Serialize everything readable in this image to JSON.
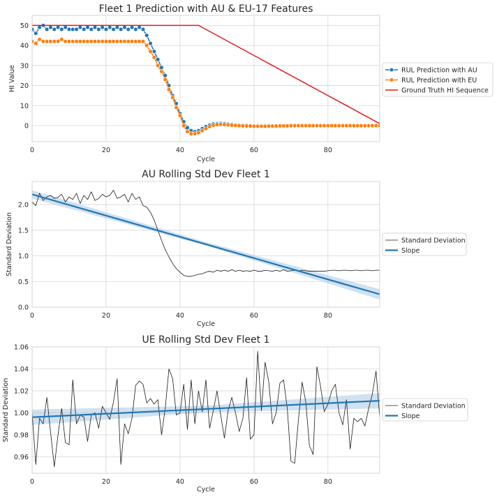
{
  "colors": {
    "au": "#1f77b4",
    "eu": "#ff7f0e",
    "truth": "#e41a1c",
    "std": "#1a1a1a",
    "slope": "#1f77b4",
    "band": "#a9c9e6"
  },
  "chart_data": [
    {
      "type": "line",
      "title": "Fleet 1 Prediction with AU & EU-17 Features",
      "xlabel": "Cycle",
      "ylabel": "HI Value",
      "xlim": [
        0,
        94
      ],
      "ylim": [
        -8,
        55
      ],
      "xticks": [
        0,
        20,
        40,
        60,
        80
      ],
      "yticks": [
        0,
        10,
        20,
        30,
        40,
        50
      ],
      "legend_position": "outside-right",
      "legend": [
        "RUL Prediction with AU",
        "RUL Prediction with EU",
        "Ground Truth HI Sequence"
      ],
      "series": [
        {
          "name": "RUL Prediction with AU",
          "x": [
            0,
            1,
            2,
            3,
            4,
            5,
            6,
            7,
            8,
            9,
            10,
            11,
            12,
            13,
            14,
            15,
            16,
            17,
            18,
            19,
            20,
            21,
            22,
            23,
            24,
            25,
            26,
            27,
            28,
            29,
            30,
            31,
            32,
            33,
            34,
            35,
            36,
            37,
            38,
            39,
            40,
            41,
            42,
            43,
            44,
            45,
            46,
            47,
            48,
            49,
            50,
            51,
            52,
            53,
            54,
            55,
            56,
            57,
            58,
            59,
            60,
            61,
            62,
            63,
            64,
            65,
            66,
            67,
            68,
            69,
            70,
            71,
            72,
            73,
            74,
            75,
            76,
            77,
            78,
            79,
            80,
            81,
            82,
            83,
            84,
            85,
            86,
            87,
            88,
            89,
            90,
            91,
            92,
            93,
            94
          ],
          "y": [
            48,
            46,
            49,
            50,
            48,
            49,
            48,
            49,
            48,
            49,
            48,
            48,
            48,
            49,
            48,
            49,
            48,
            49,
            48,
            49,
            48,
            49,
            48,
            49,
            48,
            49,
            48,
            49,
            48,
            49,
            48,
            45,
            41,
            37,
            33,
            29,
            25,
            20,
            15,
            11,
            6,
            2,
            -1,
            -2.5,
            -3,
            -2.5,
            -1.5,
            -0.5,
            0.3,
            0.8,
            1,
            1.1,
            1,
            0.8,
            0.6,
            0.4,
            0.3,
            0.2,
            0.1,
            0.1,
            0,
            0,
            0,
            0,
            0,
            0,
            0,
            0,
            0,
            0,
            0,
            0,
            0,
            0,
            0,
            0,
            0,
            0,
            0,
            0,
            0,
            0,
            0,
            0,
            0,
            0,
            0,
            0,
            0,
            0,
            0,
            0,
            0,
            0,
            0
          ]
        },
        {
          "name": "RUL Prediction with EU",
          "x": [
            0,
            1,
            2,
            3,
            4,
            5,
            6,
            7,
            8,
            9,
            10,
            11,
            12,
            13,
            14,
            15,
            16,
            17,
            18,
            19,
            20,
            21,
            22,
            23,
            24,
            25,
            26,
            27,
            28,
            29,
            30,
            31,
            32,
            33,
            34,
            35,
            36,
            37,
            38,
            39,
            40,
            41,
            42,
            43,
            44,
            45,
            46,
            47,
            48,
            49,
            50,
            51,
            52,
            53,
            54,
            55,
            56,
            57,
            58,
            59,
            60,
            61,
            62,
            63,
            64,
            65,
            66,
            67,
            68,
            69,
            70,
            71,
            72,
            73,
            74,
            75,
            76,
            77,
            78,
            79,
            80,
            81,
            82,
            83,
            84,
            85,
            86,
            87,
            88,
            89,
            90,
            91,
            92,
            93,
            94
          ],
          "y": [
            42,
            41,
            43,
            42,
            42,
            42,
            42,
            42,
            43,
            42,
            42,
            42,
            42,
            42,
            42,
            42,
            42,
            42,
            42,
            42,
            42,
            42,
            42,
            42,
            42,
            42,
            42,
            42,
            42,
            42,
            42,
            40,
            37,
            34,
            30,
            27,
            23,
            18,
            14,
            9,
            5,
            0,
            -3,
            -4,
            -4,
            -3.5,
            -2.5,
            -1.5,
            -0.5,
            0.2,
            0.5,
            0.6,
            0.5,
            0.4,
            0.2,
            0.1,
            0,
            -0.1,
            -0.2,
            -0.2,
            -0.3,
            -0.3,
            -0.3,
            -0.3,
            -0.2,
            -0.2,
            -0.2,
            -0.1,
            -0.1,
            -0.1,
            0,
            0,
            0,
            0,
            0,
            0,
            0,
            0,
            0,
            0,
            0,
            0,
            0,
            0,
            0,
            0,
            0,
            0,
            0,
            0,
            0,
            0,
            0,
            0,
            0
          ]
        },
        {
          "name": "Ground Truth HI Sequence",
          "x": [
            0,
            45,
            94
          ],
          "y": [
            50,
            50,
            1
          ]
        }
      ]
    },
    {
      "type": "line",
      "title": "AU Rolling Std Dev Fleet 1",
      "xlabel": "Cycle",
      "ylabel": "Standard Deviation",
      "xlim": [
        0,
        94
      ],
      "ylim": [
        0,
        2.45
      ],
      "xticks": [
        0,
        20,
        40,
        60,
        80
      ],
      "yticks": [
        0.0,
        0.5,
        1.0,
        1.5,
        2.0
      ],
      "legend_position": "outside-right",
      "legend": [
        "Standard Deviation",
        "Slope"
      ],
      "series": [
        {
          "name": "Standard Deviation",
          "x": [
            0,
            1,
            2,
            3,
            4,
            5,
            6,
            7,
            8,
            9,
            10,
            11,
            12,
            13,
            14,
            15,
            16,
            17,
            18,
            19,
            20,
            21,
            22,
            23,
            24,
            25,
            26,
            27,
            28,
            29,
            30,
            31,
            32,
            33,
            34,
            35,
            36,
            37,
            38,
            39,
            40,
            41,
            42,
            43,
            44,
            45,
            46,
            47,
            48,
            49,
            50,
            51,
            52,
            53,
            54,
            55,
            56,
            57,
            58,
            59,
            60,
            61,
            62,
            63,
            64,
            65,
            66,
            67,
            68,
            69,
            70,
            71,
            72,
            73,
            74,
            75,
            76,
            77,
            78,
            79,
            80,
            81,
            82,
            83,
            84,
            85,
            86,
            87,
            88,
            89,
            90,
            91,
            92,
            93,
            94
          ],
          "y": [
            2.05,
            1.98,
            2.22,
            2.08,
            2.15,
            2.18,
            2.12,
            2.14,
            2.2,
            2.05,
            2.15,
            2.1,
            2.22,
            2.02,
            2.18,
            2.1,
            2.25,
            2.08,
            2.12,
            2.2,
            2.15,
            2.18,
            2.28,
            2.12,
            2.15,
            2.2,
            2.05,
            2.22,
            2.1,
            2.15,
            1.98,
            1.95,
            1.85,
            1.7,
            1.5,
            1.3,
            1.12,
            0.98,
            0.85,
            0.75,
            0.68,
            0.62,
            0.6,
            0.6,
            0.62,
            0.64,
            0.65,
            0.68,
            0.7,
            0.68,
            0.72,
            0.7,
            0.72,
            0.7,
            0.73,
            0.7,
            0.72,
            0.7,
            0.71,
            0.7,
            0.72,
            0.7,
            0.7,
            0.72,
            0.71,
            0.7,
            0.72,
            0.7,
            0.73,
            0.7,
            0.71,
            0.72,
            0.7,
            0.72,
            0.71,
            0.7,
            0.7,
            0.7,
            0.7,
            0.7,
            0.71,
            0.72,
            0.72,
            0.71,
            0.72,
            0.72,
            0.71,
            0.72,
            0.72,
            0.71,
            0.72,
            0.72,
            0.71,
            0.72,
            0.72
          ]
        },
        {
          "name": "Slope",
          "x": [
            0,
            94
          ],
          "y": [
            2.2,
            0.25
          ]
        }
      ],
      "confidence_band": {
        "x": [
          0,
          47,
          94
        ],
        "lower": [
          2.12,
          1.2,
          0.15
        ],
        "upper": [
          2.28,
          1.27,
          0.35
        ]
      }
    },
    {
      "type": "line",
      "title": "UE Rolling Std Dev Fleet 1",
      "xlabel": "Cycle",
      "ylabel": "Standard Deviation",
      "xlim": [
        0,
        94
      ],
      "ylim": [
        0.945,
        1.06
      ],
      "xticks": [
        0,
        20,
        40,
        60,
        80
      ],
      "yticks": [
        0.96,
        0.98,
        1.0,
        1.02,
        1.04,
        1.06
      ],
      "legend_position": "outside-right",
      "legend": [
        "Standard Deviation",
        "Slope"
      ],
      "series": [
        {
          "name": "Standard Deviation",
          "x": [
            0,
            1,
            2,
            3,
            4,
            5,
            6,
            7,
            8,
            9,
            10,
            11,
            12,
            13,
            14,
            15,
            16,
            17,
            18,
            19,
            20,
            21,
            22,
            23,
            24,
            25,
            26,
            27,
            28,
            29,
            30,
            31,
            32,
            33,
            34,
            35,
            36,
            37,
            38,
            39,
            40,
            41,
            42,
            43,
            44,
            45,
            46,
            47,
            48,
            49,
            50,
            51,
            52,
            53,
            54,
            55,
            56,
            57,
            58,
            59,
            60,
            61,
            62,
            63,
            64,
            65,
            66,
            67,
            68,
            69,
            70,
            71,
            72,
            73,
            74,
            75,
            76,
            77,
            78,
            79,
            80,
            81,
            82,
            83,
            84,
            85,
            86,
            87,
            88,
            89,
            90,
            91,
            92,
            93,
            94
          ],
          "y": [
            1.0,
            0.953,
            0.995,
            0.99,
            1.014,
            0.982,
            0.951,
            0.98,
            1.004,
            0.973,
            0.971,
            1.03,
            0.99,
            0.998,
            0.996,
            0.974,
            0.998,
            1.0,
            0.986,
            1.006,
            1.0,
            0.994,
            1.01,
            1.031,
            0.953,
            0.99,
            0.981,
            0.995,
            1.025,
            1.029,
            1.026,
            1.009,
            1.013,
            1.008,
            1.012,
            0.98,
            1.004,
            1.04,
            1.031,
            0.998,
            1.0,
            1.026,
            0.985,
            1.03,
            0.99,
            1.02,
            1.001,
            1.03,
            0.986,
            1.002,
            1.02,
            0.998,
            0.977,
            1.002,
            1.014,
            1.0,
            0.983,
            0.995,
            1.032,
            0.976,
            0.98,
            1.056,
            1.002,
            1.046,
            1.028,
            0.99,
            1.0,
            1.027,
            1.03,
            1.004,
            0.956,
            0.954,
            0.993,
            1.028,
            1.01,
            0.97,
            0.962,
            1.042,
            1.024,
            1.001,
            1.008,
            1.02,
            1.026,
            1.0,
            0.989,
            1.012,
            0.967,
            0.995,
            0.992,
            0.995,
            0.988,
            1.004,
            1.017,
            1.038,
            0.996
          ]
        },
        {
          "name": "Slope",
          "x": [
            0,
            94
          ],
          "y": [
            0.996,
            1.011
          ]
        }
      ],
      "confidence_band": {
        "x": [
          0,
          47,
          94
        ],
        "lower": [
          0.989,
          1.0005,
          1.004
        ],
        "upper": [
          1.003,
          1.0065,
          1.018
        ]
      }
    }
  ]
}
